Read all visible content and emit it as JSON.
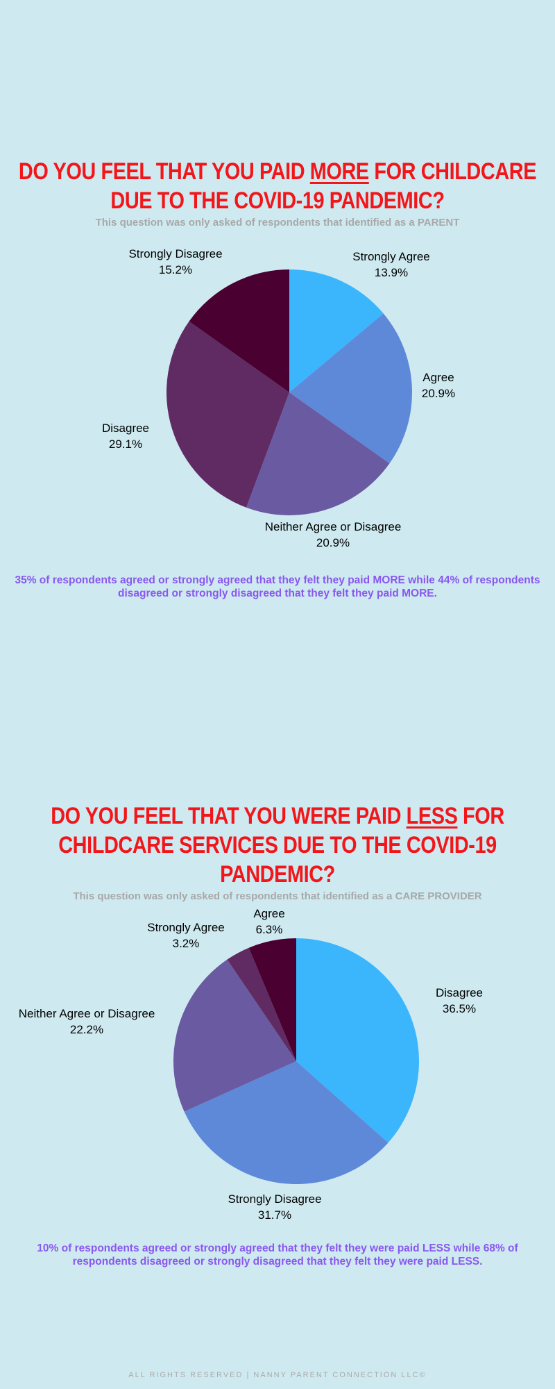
{
  "chart_data": [
    {
      "type": "pie",
      "title": "DO YOU FEEL THAT YOU PAID MORE FOR CHILDCARE DUE TO THE COVID-19 PANDEMIC?",
      "title_parts": {
        "before": "DO YOU FEEL THAT YOU PAID ",
        "emph": "MORE",
        "after": " FOR CHILDCARE DUE TO THE COVID-19 PANDEMIC?"
      },
      "subtitle": "This question was only asked of respondents that identified as a PARENT",
      "slices": [
        {
          "label": "Strongly Agree",
          "value": 13.9,
          "display": "13.9%",
          "color": "#3bb6fd"
        },
        {
          "label": "Agree",
          "value": 20.9,
          "display": "20.9%",
          "color": "#5e89d9"
        },
        {
          "label": "Neither Agree or Disagree",
          "value": 20.9,
          "display": "20.9%",
          "color": "#6a5aa1"
        },
        {
          "label": "Disagree",
          "value": 29.1,
          "display": "29.1%",
          "color": "#5f2b62"
        },
        {
          "label": "Strongly Disagree",
          "value": 15.2,
          "display": "15.2%",
          "color": "#4a0030"
        }
      ],
      "summary": "35% of respondents agreed or strongly agreed that they felt they paid MORE while 44% of respondents disagreed or strongly disagreed that they felt they paid MORE."
    },
    {
      "type": "pie",
      "title": "DO YOU FEEL THAT YOU WERE PAID LESS FOR CHILDCARE SERVICES DUE TO THE COVID-19 PANDEMIC?",
      "title_parts": {
        "before": "DO YOU FEEL THAT YOU WERE PAID ",
        "emph": "LESS",
        "after": " FOR CHILDCARE SERVICES DUE TO THE COVID-19 PANDEMIC?"
      },
      "subtitle": "This question was only asked of respondents that identified as a CARE PROVIDER",
      "slices": [
        {
          "label": "Disagree",
          "value": 36.5,
          "display": "36.5%",
          "color": "#3bb6fd"
        },
        {
          "label": "Strongly Disagree",
          "value": 31.7,
          "display": "31.7%",
          "color": "#5e89d9"
        },
        {
          "label": "Neither Agree or Disagree",
          "value": 22.2,
          "display": "22.2%",
          "color": "#6a5aa1"
        },
        {
          "label": "Strongly Agree",
          "value": 3.2,
          "display": "3.2%",
          "color": "#5f2b62"
        },
        {
          "label": "Agree",
          "value": 6.3,
          "display": "6.3%",
          "color": "#4a0030"
        }
      ],
      "summary": "10% of respondents agreed or strongly agreed that they felt they were paid LESS while 68% of respondents disagreed or strongly disagreed that they felt they were paid LESS."
    }
  ],
  "footer": "ALL RIGHTS RESERVED | NANNY PARENT CONNECTION LLC©"
}
